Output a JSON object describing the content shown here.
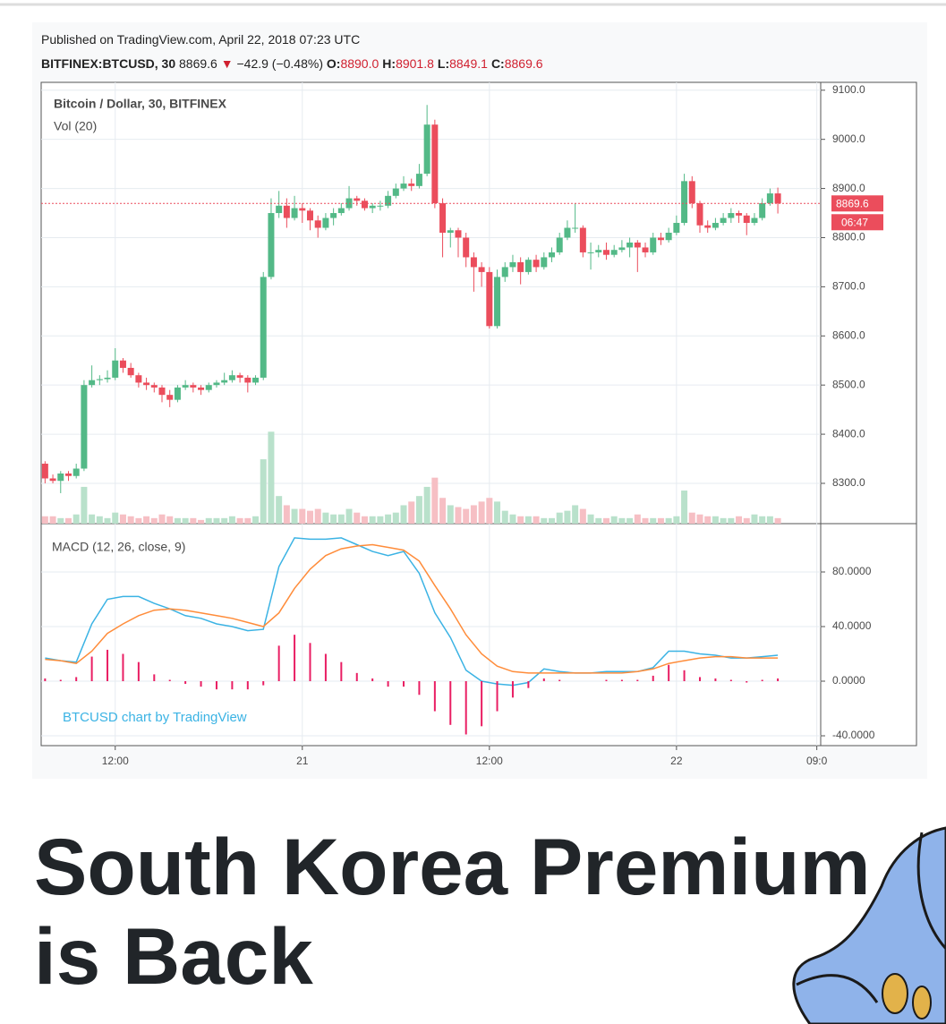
{
  "header": {
    "published": "Published on TradingView.com, April 22, 2018 07:23 UTC",
    "symbol": "BITFINEX:BTCUSD, 30",
    "price": "8869.6",
    "arrow": "▼",
    "change": "−42.9 (−0.48%)",
    "ohlc": [
      {
        "label": "O:",
        "value": "8890.0"
      },
      {
        "label": "H:",
        "value": "8901.8"
      },
      {
        "label": "L:",
        "value": "8849.1"
      },
      {
        "label": "C:",
        "value": "8869.6"
      }
    ]
  },
  "chart_data": [
    {
      "type": "candlestick",
      "title": "Bitcoin / Dollar, 30, BITFINEX",
      "subtitle": "Vol (20)",
      "up_color": "#53b987",
      "down_color": "#eb4d5c",
      "volume_up_color": "#b9e1cb",
      "volume_down_color": "#f6bfc4",
      "ylim": [
        8218,
        9116
      ],
      "yticks": [
        {
          "value": 8300,
          "label": "8300.0"
        },
        {
          "value": 8400,
          "label": "8400.0"
        },
        {
          "value": 8500,
          "label": "8500.0"
        },
        {
          "value": 8600,
          "label": "8600.0"
        },
        {
          "value": 8700,
          "label": "8700.0"
        },
        {
          "value": 8800,
          "label": "8800.0"
        },
        {
          "value": 8900,
          "label": "8900.0"
        },
        {
          "value": 9000,
          "label": "9000.0"
        },
        {
          "value": 9100,
          "label": "9100.0"
        }
      ],
      "xlim": [
        -0.5,
        99.5
      ],
      "xticks": [
        {
          "value": 9,
          "label": "12:00"
        },
        {
          "value": 33,
          "label": "21"
        },
        {
          "value": 57,
          "label": "12:00"
        },
        {
          "value": 81,
          "label": "22"
        },
        {
          "value": 99,
          "label": "09:0"
        }
      ],
      "grid": true,
      "last_price": 8869.6,
      "countdown": "06:47",
      "last_price_color": "#eb4d5c",
      "ohlc": [
        [
          8340,
          8345,
          8300,
          8310
        ],
        [
          8310,
          8318,
          8300,
          8305
        ],
        [
          8305,
          8325,
          8280,
          8320
        ],
        [
          8320,
          8325,
          8305,
          8315
        ],
        [
          8315,
          8340,
          8310,
          8330
        ],
        [
          8330,
          8510,
          8325,
          8500
        ],
        [
          8500,
          8540,
          8495,
          8510
        ],
        [
          8510,
          8520,
          8500,
          8512
        ],
        [
          8512,
          8530,
          8505,
          8515
        ],
        [
          8515,
          8575,
          8510,
          8550
        ],
        [
          8550,
          8555,
          8525,
          8535
        ],
        [
          8535,
          8545,
          8515,
          8520
        ],
        [
          8520,
          8525,
          8495,
          8505
        ],
        [
          8505,
          8515,
          8490,
          8500
        ],
        [
          8500,
          8505,
          8485,
          8495
        ],
        [
          8495,
          8500,
          8465,
          8480
        ],
        [
          8480,
          8490,
          8455,
          8470
        ],
        [
          8470,
          8500,
          8465,
          8495
        ],
        [
          8495,
          8510,
          8490,
          8500
        ],
        [
          8500,
          8505,
          8485,
          8495
        ],
        [
          8495,
          8500,
          8480,
          8490
        ],
        [
          8490,
          8505,
          8485,
          8500
        ],
        [
          8500,
          8510,
          8495,
          8505
        ],
        [
          8505,
          8525,
          8500,
          8510
        ],
        [
          8510,
          8530,
          8505,
          8520
        ],
        [
          8520,
          8525,
          8505,
          8515
        ],
        [
          8515,
          8520,
          8485,
          8505
        ],
        [
          8505,
          8520,
          8500,
          8515
        ],
        [
          8515,
          8730,
          8510,
          8720
        ],
        [
          8720,
          8880,
          8715,
          8850
        ],
        [
          8850,
          8895,
          8840,
          8865
        ],
        [
          8865,
          8880,
          8820,
          8840
        ],
        [
          8840,
          8885,
          8835,
          8860
        ],
        [
          8860,
          8870,
          8830,
          8855
        ],
        [
          8855,
          8860,
          8815,
          8835
        ],
        [
          8835,
          8845,
          8800,
          8820
        ],
        [
          8820,
          8850,
          8815,
          8840
        ],
        [
          8840,
          8860,
          8825,
          8850
        ],
        [
          8850,
          8870,
          8845,
          8860
        ],
        [
          8860,
          8905,
          8855,
          8880
        ],
        [
          8880,
          8885,
          8865,
          8875
        ],
        [
          8875,
          8880,
          8855,
          8860
        ],
        [
          8860,
          8870,
          8850,
          8865
        ],
        [
          8865,
          8875,
          8855,
          8865
        ],
        [
          8865,
          8895,
          8860,
          8885
        ],
        [
          8885,
          8910,
          8880,
          8900
        ],
        [
          8900,
          8925,
          8895,
          8910
        ],
        [
          8910,
          8920,
          8895,
          8905
        ],
        [
          8905,
          8950,
          8900,
          8930
        ],
        [
          8930,
          9070,
          8925,
          9030
        ],
        [
          9030,
          9040,
          8860,
          8870
        ],
        [
          8870,
          8880,
          8760,
          8810
        ],
        [
          8810,
          8820,
          8780,
          8815
        ],
        [
          8815,
          8820,
          8760,
          8800
        ],
        [
          8800,
          8810,
          8740,
          8760
        ],
        [
          8760,
          8770,
          8690,
          8740
        ],
        [
          8740,
          8750,
          8700,
          8730
        ],
        [
          8730,
          8740,
          8615,
          8620
        ],
        [
          8620,
          8735,
          8615,
          8720
        ],
        [
          8720,
          8750,
          8710,
          8740
        ],
        [
          8740,
          8765,
          8730,
          8750
        ],
        [
          8750,
          8760,
          8705,
          8730
        ],
        [
          8730,
          8760,
          8725,
          8755
        ],
        [
          8755,
          8765,
          8730,
          8740
        ],
        [
          8740,
          8770,
          8735,
          8760
        ],
        [
          8760,
          8780,
          8750,
          8770
        ],
        [
          8770,
          8810,
          8765,
          8800
        ],
        [
          8800,
          8835,
          8795,
          8820
        ],
        [
          8820,
          8870,
          8810,
          8820
        ],
        [
          8820,
          8825,
          8760,
          8770
        ],
        [
          8770,
          8790,
          8735,
          8770
        ],
        [
          8770,
          8785,
          8760,
          8775
        ],
        [
          8775,
          8790,
          8755,
          8765
        ],
        [
          8765,
          8785,
          8760,
          8775
        ],
        [
          8775,
          8795,
          8770,
          8780
        ],
        [
          8780,
          8800,
          8760,
          8790
        ],
        [
          8790,
          8795,
          8730,
          8780
        ],
        [
          8780,
          8790,
          8760,
          8770
        ],
        [
          8770,
          8810,
          8765,
          8800
        ],
        [
          8800,
          8810,
          8785,
          8795
        ],
        [
          8795,
          8820,
          8790,
          8810
        ],
        [
          8810,
          8845,
          8805,
          8830
        ],
        [
          8830,
          8930,
          8825,
          8915
        ],
        [
          8915,
          8925,
          8860,
          8870
        ],
        [
          8870,
          8875,
          8810,
          8825
        ],
        [
          8825,
          8835,
          8810,
          8820
        ],
        [
          8820,
          8840,
          8815,
          8830
        ],
        [
          8830,
          8850,
          8825,
          8840
        ],
        [
          8840,
          8860,
          8830,
          8850
        ],
        [
          8850,
          8855,
          8830,
          8845
        ],
        [
          8845,
          8850,
          8805,
          8830
        ],
        [
          8830,
          8850,
          8825,
          8840
        ],
        [
          8840,
          8880,
          8835,
          8870
        ],
        [
          8870,
          8900,
          8865,
          8890
        ],
        [
          8890,
          8901.8,
          8849.1,
          8869.6
        ]
      ],
      "volume_ylim": [
        0,
        240
      ],
      "volume": [
        4,
        4,
        3,
        3,
        5,
        20,
        5,
        4,
        3,
        6,
        5,
        4,
        3,
        4,
        3,
        5,
        4,
        3,
        3,
        3,
        2,
        3,
        3,
        3,
        4,
        3,
        3,
        4,
        35,
        50,
        15,
        10,
        8,
        8,
        7,
        8,
        6,
        5,
        5,
        8,
        6,
        4,
        4,
        4,
        5,
        6,
        10,
        12,
        15,
        20,
        25,
        14,
        10,
        9,
        8,
        10,
        12,
        14,
        12,
        7,
        5,
        4,
        4,
        4,
        3,
        3,
        6,
        7,
        10,
        8,
        5,
        3,
        3,
        4,
        3,
        3,
        5,
        3,
        3,
        3,
        3,
        4,
        18,
        6,
        5,
        4,
        4,
        3,
        3,
        4,
        3,
        5,
        4,
        4,
        3
      ]
    },
    {
      "type": "macd",
      "title": "MACD (12, 26, close, 9)",
      "ylim": [
        -47.2,
        115.4
      ],
      "yticks": [
        {
          "value": -40,
          "label": "-40.0000"
        },
        {
          "value": 0,
          "label": "0.0000"
        },
        {
          "value": 40,
          "label": "40.0000"
        },
        {
          "value": 80,
          "label": "80.0000"
        }
      ],
      "x": [
        0,
        2,
        4,
        6,
        8,
        10,
        12,
        14,
        16,
        18,
        20,
        22,
        24,
        26,
        28,
        30,
        32,
        34,
        36,
        38,
        40,
        42,
        44,
        46,
        48,
        50,
        52,
        54,
        56,
        58,
        60,
        62,
        64,
        66,
        68,
        70,
        72,
        74,
        76,
        78,
        80,
        82,
        84,
        86,
        88,
        90,
        92,
        94
      ],
      "series": [
        {
          "style": "line",
          "color": "#3bb3e4",
          "values": [
            17,
            15,
            14,
            42,
            60,
            62,
            62,
            57,
            53,
            48,
            46,
            42,
            40,
            37,
            38,
            84,
            105,
            104,
            104,
            105,
            100,
            95,
            92,
            95,
            79,
            50,
            32,
            8,
            0,
            -2,
            -3,
            -1,
            9,
            7,
            6,
            6,
            7,
            7,
            7,
            10,
            22,
            22,
            20,
            19,
            17,
            17,
            18,
            19
          ]
        },
        {
          "style": "line",
          "color": "#ff8c3a",
          "values": [
            16,
            15,
            13,
            22,
            35,
            42,
            48,
            52,
            53,
            52,
            50,
            48,
            46,
            43,
            40,
            50,
            68,
            82,
            92,
            97,
            99,
            100,
            98,
            96,
            88,
            70,
            53,
            34,
            20,
            11,
            7,
            6,
            6,
            6,
            6,
            6,
            6,
            6,
            7,
            9,
            13,
            15,
            17,
            18,
            18,
            17,
            17,
            17
          ]
        },
        {
          "style": "histogram",
          "color": "#e91e63",
          "values": [
            2,
            1,
            3,
            18,
            23,
            20,
            14,
            5,
            1,
            -2,
            -4,
            -6,
            -6,
            -6,
            -3,
            26,
            34,
            28,
            20,
            14,
            6,
            2,
            -4,
            -4,
            -10,
            -22,
            -32,
            -39,
            -33,
            -22,
            -12,
            -5,
            2,
            1,
            0,
            0,
            1,
            1,
            1,
            4,
            12,
            8,
            3,
            2,
            1,
            -1,
            1,
            2
          ]
        }
      ]
    }
  ],
  "watermark": "BTCUSD chart by TradingView",
  "headline": "South Korea Premium is Back"
}
